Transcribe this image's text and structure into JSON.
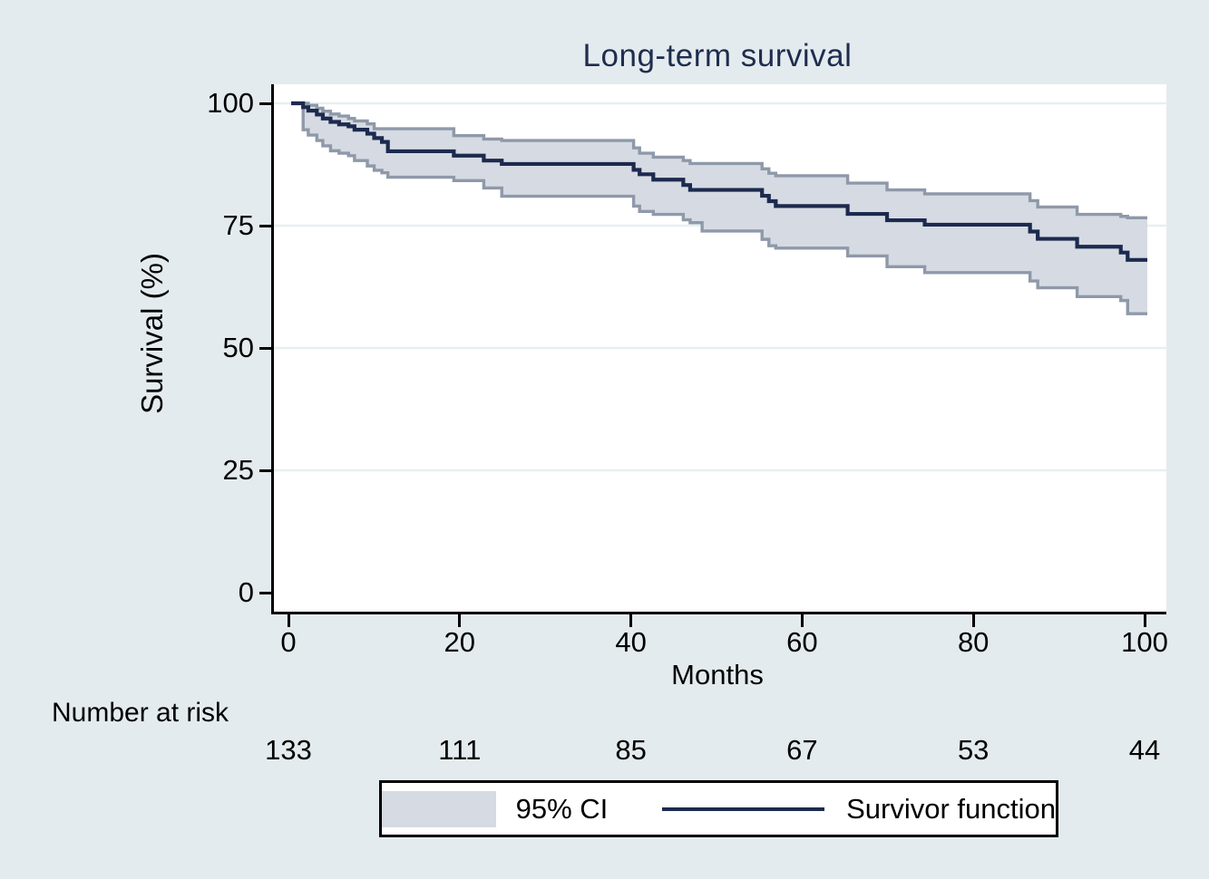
{
  "page": {
    "background": "#e4ebee"
  },
  "chart_data": {
    "type": "line",
    "subtype": "kaplan-meier-step-with-ci-band",
    "title": "Long-term survival",
    "xlabel": "Months",
    "ylabel": "Survival (%)",
    "xlim": [
      0,
      100
    ],
    "ylim": [
      0,
      100
    ],
    "xticks": [
      0,
      20,
      40,
      60,
      80,
      100
    ],
    "yticks": [
      0,
      25,
      50,
      75,
      100
    ],
    "grid": "horizontal gridlines at y = 25, 50, 75, 100",
    "legend": {
      "position": "bottom-center",
      "entries": [
        {
          "label": "95% CI",
          "marker": "band-swatch"
        },
        {
          "label": "Survivor function",
          "marker": "line"
        }
      ]
    },
    "colors": {
      "background": "#e4ebee",
      "plot_background": "#ffffff",
      "grid": "#e8eff1",
      "band_fill": "#d6dae3",
      "band_edge": "#8e99a9",
      "survivor_line": "#1c2a4e",
      "axis": "#000000",
      "title_text": "#1e2d4f"
    },
    "km": {
      "t": [
        0,
        1.4,
        2,
        3,
        3.7,
        4.6,
        5.6,
        6.7,
        7.4,
        8.9,
        9.7,
        10.6,
        11.3,
        19,
        22.5,
        24.6,
        40,
        40.7,
        42.3,
        45.8,
        46.6,
        48,
        55,
        55.8,
        56.6,
        65,
        69.6,
        74,
        86.3,
        87.2,
        91.8,
        96.9,
        97.7,
        100
      ],
      "surv": [
        100,
        99.2,
        98.5,
        97.7,
        96.9,
        96.2,
        95.7,
        95.3,
        94.6,
        93.8,
        92.9,
        92.1,
        90.2,
        89.3,
        88.3,
        87.6,
        86.4,
        85.5,
        84.4,
        83.3,
        82.3,
        82.3,
        81.1,
        80.0,
        79.0,
        77.4,
        76.1,
        75.2,
        73.8,
        72.3,
        70.7,
        69.5,
        68.0,
        68.0
      ],
      "upper": [
        100,
        100,
        99.6,
        99.0,
        98.4,
        97.8,
        97.4,
        96.9,
        96.4,
        95.8,
        94.8,
        94.8,
        94.8,
        93.4,
        92.7,
        92.4,
        90.9,
        89.8,
        89.0,
        88.3,
        87.7,
        87.7,
        86.6,
        85.7,
        85.2,
        83.7,
        82.3,
        81.5,
        80.1,
        78.8,
        77.3,
        76.9,
        76.6,
        76.6
      ],
      "lower": [
        100,
        94.6,
        93.5,
        92.4,
        91.3,
        90.3,
        89.8,
        89.3,
        88.3,
        87.2,
        86.3,
        85.8,
        84.9,
        84.2,
        82.7,
        81.0,
        79.0,
        77.9,
        77.3,
        76.2,
        75.6,
        73.9,
        72.2,
        70.9,
        70.4,
        68.8,
        66.6,
        65.4,
        63.7,
        62.3,
        60.5,
        59.7,
        57.0,
        57.0
      ]
    },
    "number_at_risk": {
      "label": "Number at risk",
      "times": [
        0,
        20,
        40,
        60,
        80,
        100
      ],
      "counts": [
        133,
        111,
        85,
        67,
        53,
        44
      ]
    }
  }
}
